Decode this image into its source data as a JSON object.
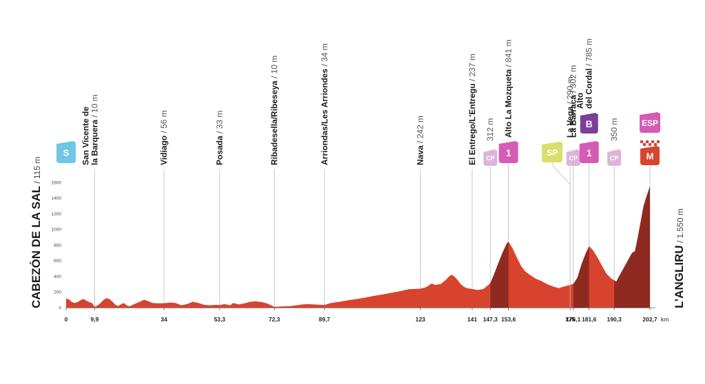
{
  "chart_data": {
    "type": "area",
    "x_unit": "km",
    "xlim": [
      0,
      202.7
    ],
    "ylim": [
      0,
      1700
    ],
    "y_ticks": [
      "0",
      "200",
      "400",
      "600",
      "800",
      "1000",
      "1200",
      "1400",
      "1600"
    ],
    "start": {
      "name": "CABEZÓN DE LA SAL",
      "alt": " / 115 m"
    },
    "finish": {
      "name": "L’ANGLIRU",
      "alt": " / 1.550 m"
    },
    "profile": [
      [
        0,
        115
      ],
      [
        1,
        105
      ],
      [
        2,
        70
      ],
      [
        3,
        60
      ],
      [
        4,
        70
      ],
      [
        5,
        95
      ],
      [
        6,
        110
      ],
      [
        7,
        90
      ],
      [
        8,
        70
      ],
      [
        9,
        60
      ],
      [
        9.9,
        10
      ],
      [
        11,
        30
      ],
      [
        12,
        60
      ],
      [
        13,
        100
      ],
      [
        14,
        120
      ],
      [
        15,
        110
      ],
      [
        16,
        80
      ],
      [
        17,
        40
      ],
      [
        18,
        20
      ],
      [
        19,
        40
      ],
      [
        20,
        60
      ],
      [
        21,
        30
      ],
      [
        22,
        15
      ],
      [
        24,
        50
      ],
      [
        26,
        80
      ],
      [
        27,
        100
      ],
      [
        28,
        90
      ],
      [
        30,
        60
      ],
      [
        32,
        55
      ],
      [
        34,
        56
      ],
      [
        36,
        65
      ],
      [
        38,
        60
      ],
      [
        40,
        30
      ],
      [
        42,
        45
      ],
      [
        44,
        75
      ],
      [
        46,
        60
      ],
      [
        48,
        35
      ],
      [
        50,
        30
      ],
      [
        52,
        35
      ],
      [
        53.3,
        33
      ],
      [
        55,
        45
      ],
      [
        57,
        30
      ],
      [
        58,
        60
      ],
      [
        60,
        40
      ],
      [
        62,
        55
      ],
      [
        64,
        75
      ],
      [
        66,
        80
      ],
      [
        68,
        70
      ],
      [
        70,
        50
      ],
      [
        72.3,
        10
      ],
      [
        75,
        15
      ],
      [
        78,
        20
      ],
      [
        80,
        30
      ],
      [
        82,
        40
      ],
      [
        84,
        45
      ],
      [
        86,
        40
      ],
      [
        89.7,
        34
      ],
      [
        92,
        60
      ],
      [
        95,
        75
      ],
      [
        98,
        95
      ],
      [
        101,
        110
      ],
      [
        104,
        130
      ],
      [
        107,
        150
      ],
      [
        110,
        170
      ],
      [
        113,
        190
      ],
      [
        116,
        210
      ],
      [
        119,
        235
      ],
      [
        123,
        242
      ],
      [
        125,
        260
      ],
      [
        127,
        310
      ],
      [
        128,
        290
      ],
      [
        130,
        300
      ],
      [
        132,
        360
      ],
      [
        133,
        400
      ],
      [
        134,
        420
      ],
      [
        135,
        390
      ],
      [
        136,
        350
      ],
      [
        137,
        300
      ],
      [
        138,
        270
      ],
      [
        139,
        250
      ],
      [
        141,
        237
      ],
      [
        143,
        225
      ],
      [
        145,
        240
      ],
      [
        147.3,
        312
      ],
      [
        148.5,
        420
      ],
      [
        150,
        560
      ],
      [
        151.5,
        700
      ],
      [
        153,
        820
      ],
      [
        153.6,
        841
      ],
      [
        155,
        760
      ],
      [
        156.5,
        640
      ],
      [
        158,
        530
      ],
      [
        159.5,
        460
      ],
      [
        161,
        420
      ],
      [
        163,
        370
      ],
      [
        165,
        340
      ],
      [
        167,
        300
      ],
      [
        169,
        270
      ],
      [
        171,
        250
      ],
      [
        173,
        270
      ],
      [
        175,
        290
      ],
      [
        176.1,
        302
      ],
      [
        177.5,
        380
      ],
      [
        179,
        560
      ],
      [
        180.5,
        700
      ],
      [
        181.6,
        785
      ],
      [
        183,
        730
      ],
      [
        184.5,
        640
      ],
      [
        186,
        540
      ],
      [
        187.5,
        440
      ],
      [
        189,
        380
      ],
      [
        190.3,
        350
      ],
      [
        191,
        330
      ],
      [
        192,
        400
      ],
      [
        193.5,
        500
      ],
      [
        195,
        600
      ],
      [
        196.5,
        700
      ],
      [
        197.5,
        720
      ],
      [
        198.5,
        900
      ],
      [
        199.5,
        1100
      ],
      [
        200.5,
        1300
      ],
      [
        201.5,
        1420
      ],
      [
        202.7,
        1550
      ]
    ],
    "dark_segments": [
      [
        147.3,
        153.6
      ],
      [
        176.1,
        181.6
      ],
      [
        190.3,
        202.7
      ]
    ],
    "waypoints": [
      {
        "km": 0,
        "dist_label": "0",
        "kind": "start",
        "badge": "S"
      },
      {
        "km": 9.9,
        "dist_label": "9,9",
        "lines": [
          "San Vicente de",
          "la Barquera"
        ],
        "alt": " / 10 m"
      },
      {
        "km": 34,
        "dist_label": "34",
        "lines": [
          "Vidiago"
        ],
        "alt": " / 56 m"
      },
      {
        "km": 53.3,
        "dist_label": "53,3",
        "lines": [
          "Posada"
        ],
        "alt": " / 33 m"
      },
      {
        "km": 72.3,
        "dist_label": "72,3",
        "lines": [
          "Ribadesella/Ribeseya"
        ],
        "alt": " / 10 m"
      },
      {
        "km": 89.7,
        "dist_label": "89,7",
        "lines": [
          "Arriondas/Les Arriondes"
        ],
        "alt": " / 34 m"
      },
      {
        "km": 123,
        "dist_label": "123",
        "lines": [
          "Nava"
        ],
        "alt": " / 242 m"
      },
      {
        "km": 141,
        "dist_label": "141",
        "lines": [
          "El Entrego/L’Entregu"
        ],
        "alt": " / 237 m"
      },
      {
        "km": 147.3,
        "dist_label": "147,3",
        "lines": [],
        "alt": "312 m",
        "badge": "CP"
      },
      {
        "km": 153.6,
        "dist_label": "153,6",
        "lines": [
          "Alto La Mozqueta"
        ],
        "alt": " / 841 m",
        "badge": "1"
      },
      {
        "km": 175,
        "dist_label": "175",
        "lines": [
          "La Vega"
        ],
        "alt": " / 290 m",
        "badge": "SP"
      },
      {
        "km": 176.1,
        "dist_label": "176,1",
        "lines": [
          "La Barraca"
        ],
        "alt": " / 302 m",
        "badge": "CP"
      },
      {
        "km": 181.6,
        "dist_label": "181,6",
        "lines": [
          "Alto",
          "del Cordal"
        ],
        "alt": " / 785 m",
        "badge": "1",
        "badge_top": "B"
      },
      {
        "km": 190.3,
        "dist_label": "190,3",
        "lines": [],
        "alt": "350 m",
        "badge": "CP"
      },
      {
        "km": 202.7,
        "dist_label": "202,7",
        "unit": "km",
        "lines": [],
        "badge": "M",
        "badge_top": "ESP"
      }
    ]
  },
  "colors": {
    "profile_light": "#d8432f",
    "profile_dark": "#8e2a20",
    "start_badge": "#6fc6e6",
    "cp_badge": "#ddb4d8",
    "cat1_badge": "#d55bb5",
    "sp_badge": "#d9df6a",
    "bonus_badge": "#7b3f98",
    "finish_badge": "#d7452f",
    "finish_top": "#d55bb5",
    "line": "#bbbbbb"
  }
}
